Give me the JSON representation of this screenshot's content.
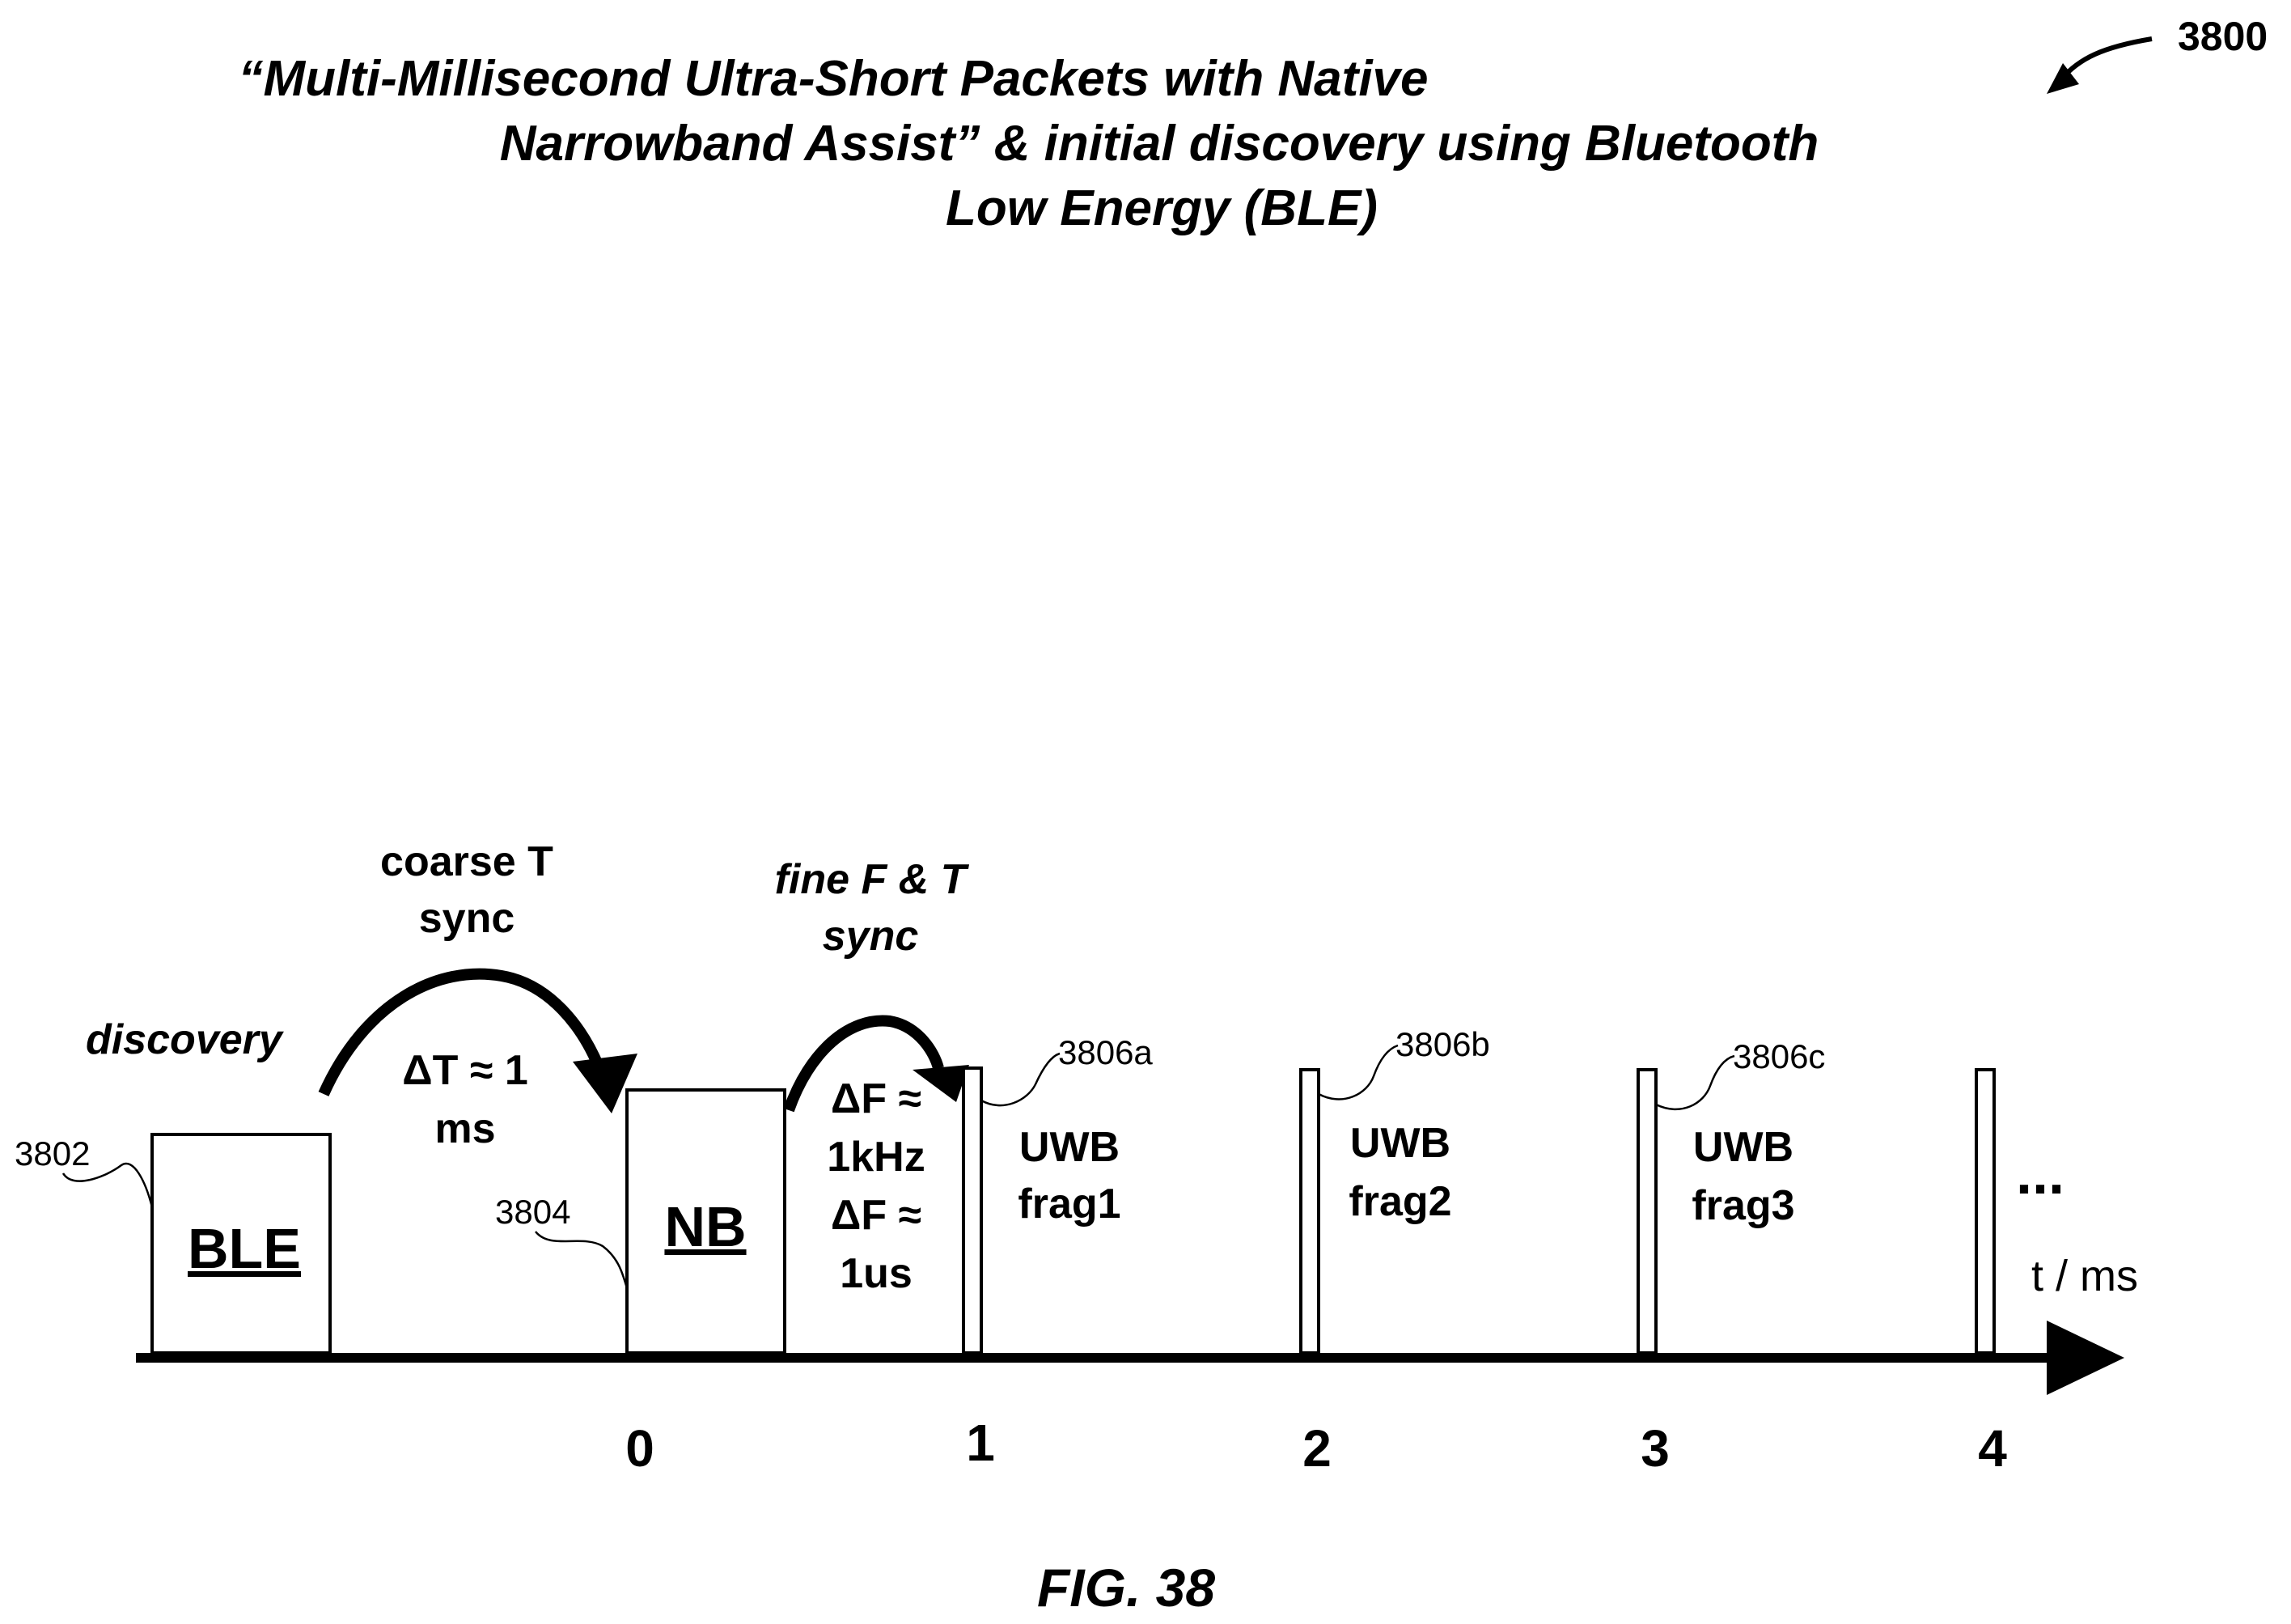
{
  "figure": {
    "number_label": "3800",
    "caption": "FIG. 38",
    "title_lines": [
      "“Multi-Millisecond Ultra-Short Packets with Native",
      "Narrowband Assist” & initial discovery using Bluetooth",
      "Low Energy (BLE)"
    ]
  },
  "blocks": {
    "ble": {
      "label": "BLE",
      "ref": "3802"
    },
    "nb": {
      "label": "NB",
      "ref": "3804"
    }
  },
  "annotations": {
    "discovery": "discovery",
    "coarse_lines": [
      "coarse T",
      "sync"
    ],
    "delta_t_lines": [
      "ΔT ≈ 1",
      "ms"
    ],
    "fine_lines": [
      "fine F & T",
      "sync"
    ],
    "delta_f_lines": [
      "ΔF ≈",
      "1kHz",
      "ΔF ≈",
      "1us"
    ]
  },
  "fragments": [
    {
      "ref": "3806a",
      "label_lines": [
        "UWB",
        "frag1"
      ]
    },
    {
      "ref": "3806b",
      "label_lines": [
        "UWB",
        "frag2"
      ]
    },
    {
      "ref": "3806c",
      "label_lines": [
        "UWB",
        "frag3"
      ]
    }
  ],
  "axis": {
    "unit_label": "t / ms",
    "ticks": [
      "0",
      "1",
      "2",
      "3",
      "4"
    ],
    "continuation": "..."
  }
}
